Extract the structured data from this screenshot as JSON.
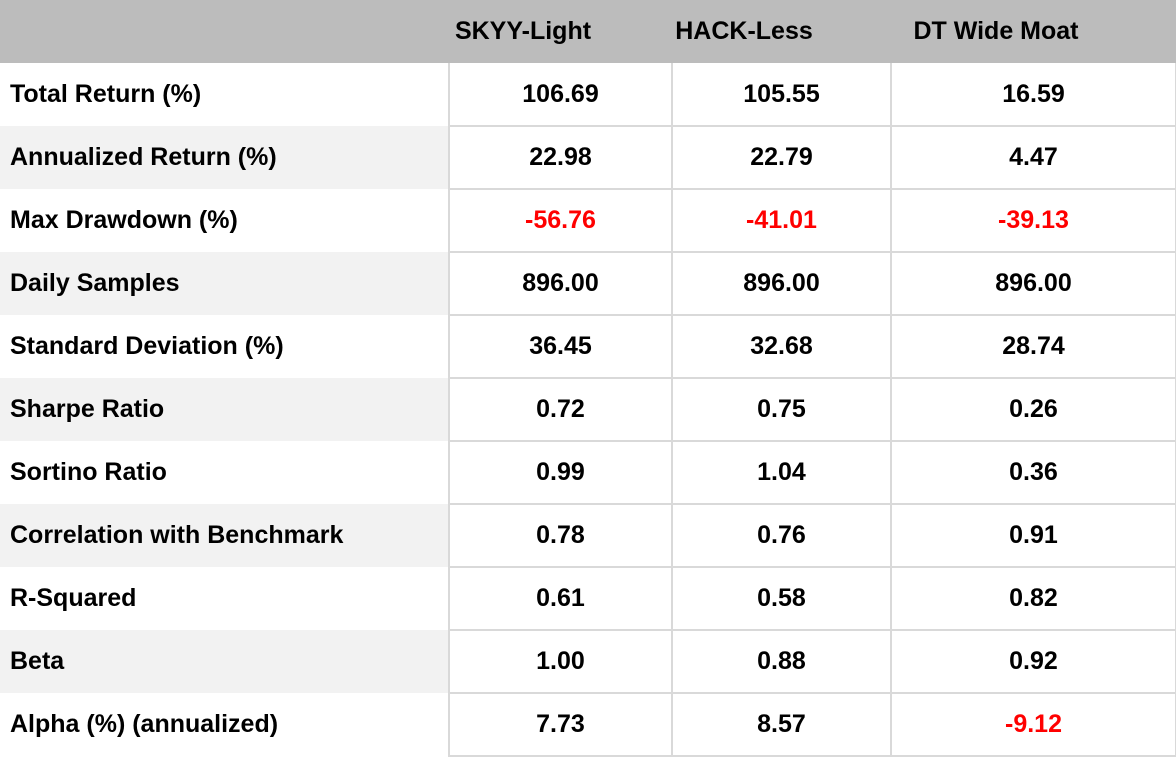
{
  "colors": {
    "header_bg": "#bcbcbc",
    "stripe": "#f2f2f2",
    "border": "#d9d9d9",
    "negative": "#ff0000",
    "text": "#000000"
  },
  "table": {
    "columns": [
      "",
      "SKYY-Light",
      "HACK-Less",
      "DT Wide Moat"
    ],
    "rows": [
      {
        "label": "Total Return (%)",
        "values": [
          "106.69",
          "105.55",
          "16.59"
        ],
        "red": [
          false,
          false,
          false
        ]
      },
      {
        "label": "Annualized Return (%)",
        "values": [
          "22.98",
          "22.79",
          "4.47"
        ],
        "red": [
          false,
          false,
          false
        ]
      },
      {
        "label": "Max Drawdown (%)",
        "values": [
          "-56.76",
          "-41.01",
          "-39.13"
        ],
        "red": [
          true,
          true,
          true
        ]
      },
      {
        "label": "Daily Samples",
        "values": [
          "896.00",
          "896.00",
          "896.00"
        ],
        "red": [
          false,
          false,
          false
        ]
      },
      {
        "label": "Standard Deviation (%)",
        "values": [
          "36.45",
          "32.68",
          "28.74"
        ],
        "red": [
          false,
          false,
          false
        ]
      },
      {
        "label": "Sharpe Ratio",
        "values": [
          "0.72",
          "0.75",
          "0.26"
        ],
        "red": [
          false,
          false,
          false
        ]
      },
      {
        "label": "Sortino Ratio",
        "values": [
          "0.99",
          "1.04",
          "0.36"
        ],
        "red": [
          false,
          false,
          false
        ]
      },
      {
        "label": "Correlation with Benchmark",
        "values": [
          "0.78",
          "0.76",
          "0.91"
        ],
        "red": [
          false,
          false,
          false
        ]
      },
      {
        "label": "R-Squared",
        "values": [
          "0.61",
          "0.58",
          "0.82"
        ],
        "red": [
          false,
          false,
          false
        ]
      },
      {
        "label": "Beta",
        "values": [
          "1.00",
          "0.88",
          "0.92"
        ],
        "red": [
          false,
          false,
          false
        ]
      },
      {
        "label": "Alpha (%) (annualized)",
        "values": [
          "7.73",
          "8.57",
          "-9.12"
        ],
        "red": [
          false,
          false,
          true
        ]
      }
    ]
  },
  "chart_data": {
    "type": "table",
    "title": "",
    "columns": [
      "SKYY-Light",
      "HACK-Less",
      "DT Wide Moat"
    ],
    "metrics": [
      "Total Return (%)",
      "Annualized Return (%)",
      "Max Drawdown (%)",
      "Daily Samples",
      "Standard Deviation (%)",
      "Sharpe Ratio",
      "Sortino Ratio",
      "Correlation with Benchmark",
      "R-Squared",
      "Beta",
      "Alpha (%) (annualized)"
    ],
    "series": [
      {
        "name": "SKYY-Light",
        "values": [
          106.69,
          22.98,
          -56.76,
          896.0,
          36.45,
          0.72,
          0.99,
          0.78,
          0.61,
          1.0,
          7.73
        ]
      },
      {
        "name": "HACK-Less",
        "values": [
          105.55,
          22.79,
          -41.01,
          896.0,
          32.68,
          0.75,
          1.04,
          0.76,
          0.58,
          0.88,
          8.57
        ]
      },
      {
        "name": "DT Wide Moat",
        "values": [
          16.59,
          4.47,
          -39.13,
          896.0,
          28.74,
          0.26,
          0.36,
          0.91,
          0.82,
          0.92,
          -9.12
        ]
      }
    ],
    "negative_values_shown_in_red": true,
    "layout": {
      "striped_label_column": true,
      "header_background": "#bcbcbc",
      "gridlines_on_value_columns": true
    }
  }
}
